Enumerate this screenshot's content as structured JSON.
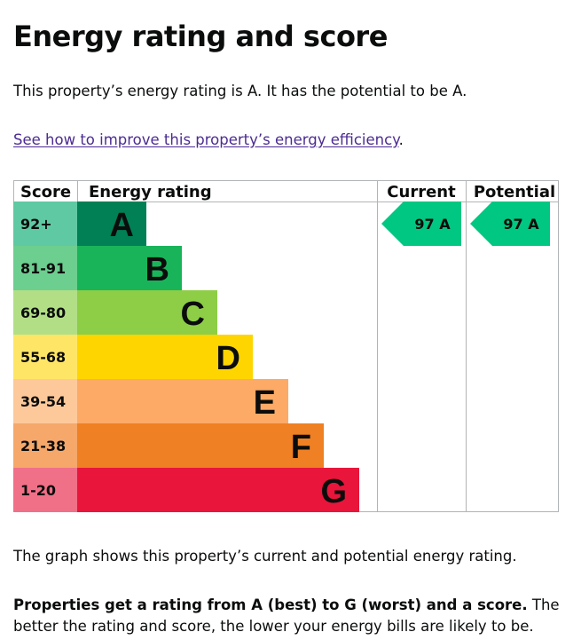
{
  "page": {
    "title": "Energy rating and score",
    "intro": "This property’s energy rating is A. It has the potential to be A.",
    "link_text": "See how to improve this property’s energy efficiency",
    "link_suffix": ".",
    "graph_description": "The graph shows this property’s current and potential energy rating.",
    "explain_bold": "Properties get a rating from A (best) to G (worst) and a score.",
    "explain_rest": " The better the rating and score, the lower your energy bills are likely to be."
  },
  "chart_data": {
    "type": "bar",
    "headers": {
      "score": "Score",
      "energy_rating": "Energy rating",
      "current": "Current",
      "potential": "Potential"
    },
    "bands": [
      {
        "score": "92+",
        "letter": "A",
        "color": "#008054",
        "score_bg": "#5fc9a3"
      },
      {
        "score": "81-91",
        "letter": "B",
        "color": "#19b459",
        "score_bg": "#6cce8f"
      },
      {
        "score": "69-80",
        "letter": "C",
        "color": "#8dce46",
        "score_bg": "#b2df86"
      },
      {
        "score": "55-68",
        "letter": "D",
        "color": "#ffd500",
        "score_bg": "#ffe566"
      },
      {
        "score": "39-54",
        "letter": "E",
        "color": "#fcaa65",
        "score_bg": "#fdc99a"
      },
      {
        "score": "21-38",
        "letter": "F",
        "color": "#ef8023",
        "score_bg": "#f5a86a"
      },
      {
        "score": "1-20",
        "letter": "G",
        "color": "#e9153b",
        "score_bg": "#f07088"
      }
    ],
    "current": {
      "score": 97,
      "letter": "A",
      "label": "97 A",
      "band_index": 0,
      "color": "#00c781"
    },
    "potential": {
      "score": 97,
      "letter": "A",
      "label": "97 A",
      "band_index": 0,
      "color": "#00c781"
    }
  }
}
